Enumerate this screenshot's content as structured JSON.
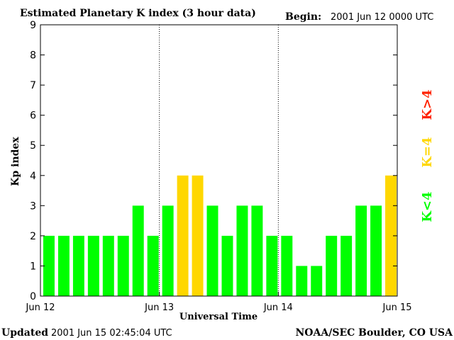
{
  "colors": {
    "below_4": "#00FF00",
    "equal_4": "#FFD700",
    "above_4": "#FF2200",
    "axis": "#000000",
    "background": "#FFFFFF"
  },
  "header": {
    "title": "Estimated Planetary K index (3 hour data)",
    "begin_label": "Begin:",
    "begin_value": "2001 Jun 12 0000 UTC"
  },
  "footer": {
    "updated_label": "Updated",
    "updated_value": "2001 Jun 15 02:45:04 UTC",
    "source": "NOAA/SEC Boulder, CO USA"
  },
  "legend": {
    "below": "K<4",
    "equal": "K=4",
    "above": "K>4"
  },
  "chart_data": {
    "type": "bar",
    "title": "Estimated Planetary K index (3 hour data)",
    "xlabel": "Universal Time",
    "ylabel": "Kp index",
    "ylim": [
      0,
      9
    ],
    "yticks": [
      "0",
      "1",
      "2",
      "3",
      "4",
      "5",
      "6",
      "7",
      "8",
      "9"
    ],
    "xticks": [
      "Jun 12",
      "Jun 13",
      "Jun 14",
      "Jun 15"
    ],
    "interval_hours": 3,
    "day_separators": [
      "Jun 13",
      "Jun 14"
    ],
    "values": [
      2,
      2,
      2,
      2,
      2,
      2,
      3,
      2,
      3,
      4,
      4,
      3,
      2,
      3,
      3,
      2,
      2,
      1,
      1,
      2,
      2,
      3,
      3,
      4
    ]
  }
}
